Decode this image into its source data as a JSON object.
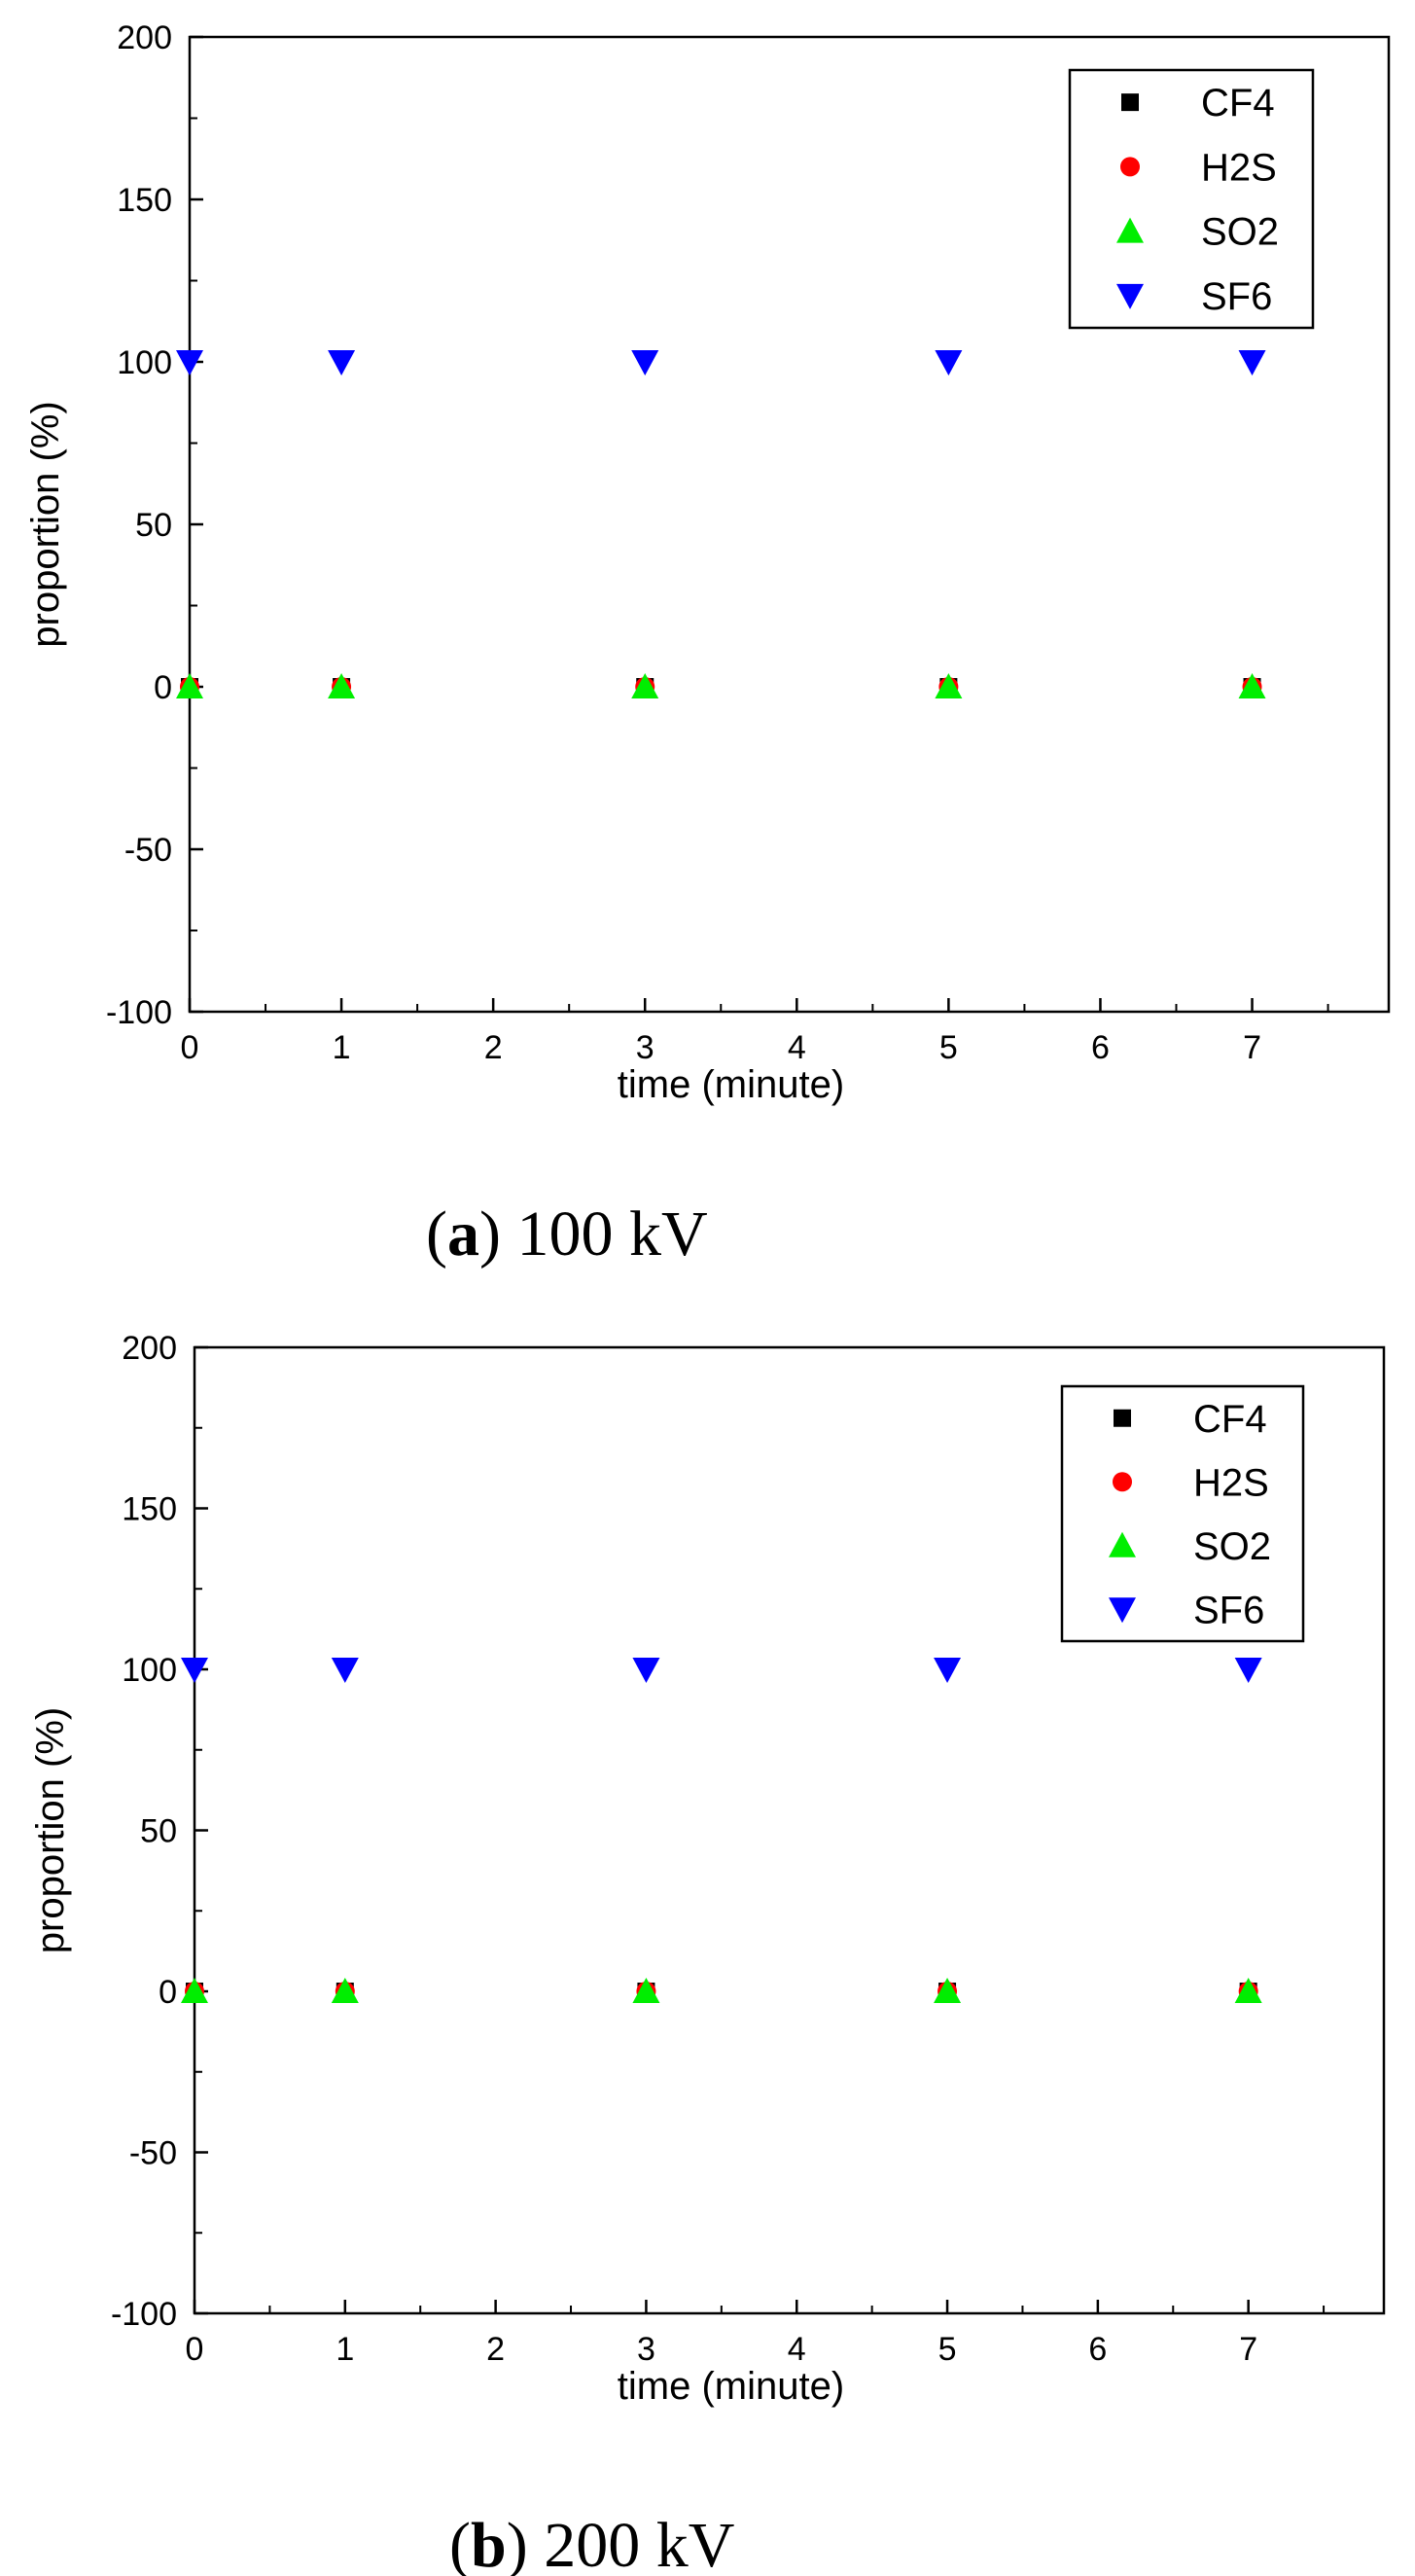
{
  "chart_data": [
    {
      "type": "scatter",
      "caption": {
        "paren_open": "(",
        "letter": "a",
        "paren_close": ")",
        "text": " 100 kV"
      },
      "xlabel": "time (minute)",
      "ylabel": "proportion (%)",
      "xlim": [
        0,
        7.9
      ],
      "ylim": [
        -100,
        200
      ],
      "x_ticks": [
        0,
        1,
        2,
        3,
        4,
        5,
        6,
        7
      ],
      "x_tick_labels": [
        "0",
        "1",
        "2",
        "3",
        "4",
        "5",
        "6",
        "7"
      ],
      "y_ticks": [
        -100,
        -50,
        0,
        50,
        100,
        150,
        200
      ],
      "y_tick_labels": [
        "-100",
        "-50",
        "0",
        "50",
        "100",
        "150",
        "200"
      ],
      "legend_position": "top-right",
      "series": [
        {
          "name": "CF4",
          "marker": "square",
          "color": "#000000",
          "x": [
            0,
            1,
            3,
            5,
            7
          ],
          "y": [
            0,
            0,
            0,
            0,
            0
          ]
        },
        {
          "name": "H2S",
          "marker": "circle",
          "color": "#ff0000",
          "x": [
            0,
            1,
            3,
            5,
            7
          ],
          "y": [
            0,
            0,
            0,
            0,
            0
          ]
        },
        {
          "name": "SO2",
          "marker": "triangle-up",
          "color": "#00ee00",
          "x": [
            0,
            1,
            3,
            5,
            7
          ],
          "y": [
            0,
            0,
            0,
            0,
            0
          ]
        },
        {
          "name": "SF6",
          "marker": "triangle-down",
          "color": "#0000ff",
          "x": [
            0,
            1,
            3,
            5,
            7
          ],
          "y": [
            100,
            100,
            100,
            100,
            100
          ]
        }
      ]
    },
    {
      "type": "scatter",
      "caption": {
        "paren_open": "(",
        "letter": "b",
        "paren_close": ")",
        "text": " 200 kV"
      },
      "xlabel": "time (minute)",
      "ylabel": "proportion (%)",
      "xlim": [
        0,
        7.9
      ],
      "ylim": [
        -100,
        200
      ],
      "x_ticks": [
        0,
        1,
        2,
        3,
        4,
        5,
        6,
        7
      ],
      "x_tick_labels": [
        "0",
        "1",
        "2",
        "3",
        "4",
        "5",
        "6",
        "7"
      ],
      "y_ticks": [
        -100,
        -50,
        0,
        50,
        100,
        150,
        200
      ],
      "y_tick_labels": [
        "-100",
        "-50",
        "0",
        "50",
        "100",
        "150",
        "200"
      ],
      "legend_position": "top-right",
      "series": [
        {
          "name": "CF4",
          "marker": "square",
          "color": "#000000",
          "x": [
            0,
            1,
            3,
            5,
            7
          ],
          "y": [
            0,
            0,
            0,
            0,
            0
          ]
        },
        {
          "name": "H2S",
          "marker": "circle",
          "color": "#ff0000",
          "x": [
            0,
            1,
            3,
            5,
            7
          ],
          "y": [
            0,
            0,
            0,
            0,
            0
          ]
        },
        {
          "name": "SO2",
          "marker": "triangle-up",
          "color": "#00ee00",
          "x": [
            0,
            1,
            3,
            5,
            7
          ],
          "y": [
            0,
            0,
            0,
            0,
            0
          ]
        },
        {
          "name": "SF6",
          "marker": "triangle-down",
          "color": "#0000ff",
          "x": [
            0,
            1,
            3,
            5,
            7
          ],
          "y": [
            100,
            100,
            100,
            100,
            100
          ]
        }
      ]
    }
  ]
}
